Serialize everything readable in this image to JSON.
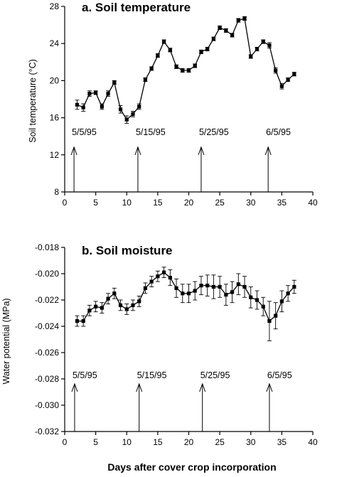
{
  "shared_xlabel": "Days after cover crop incorporation",
  "chart_data": [
    {
      "type": "line",
      "title": "a. Soil temperature",
      "xlabel": "",
      "ylabel": "Soil temperature (°C)",
      "xlim": [
        0,
        40
      ],
      "ylim": [
        8,
        28
      ],
      "xticks": [
        0,
        5,
        10,
        15,
        20,
        25,
        30,
        35,
        40
      ],
      "yticks": [
        8,
        12,
        16,
        20,
        24,
        28
      ],
      "ytick_labels": [
        "8",
        "12",
        "16",
        "20",
        "24",
        "28"
      ],
      "grid": false,
      "x": [
        2,
        3,
        4,
        5,
        6,
        7,
        8,
        9,
        10,
        11,
        12,
        13,
        14,
        15,
        16,
        17,
        18,
        19,
        20,
        21,
        22,
        23,
        24,
        25,
        26,
        27,
        28,
        29,
        30,
        31,
        32,
        33,
        34,
        35,
        36,
        37
      ],
      "y": [
        17.4,
        17.1,
        18.6,
        18.7,
        17.2,
        18.6,
        19.8,
        16.9,
        15.8,
        16.4,
        17.2,
        20.1,
        21.3,
        22.7,
        24.2,
        23.3,
        21.5,
        21.1,
        21.1,
        21.6,
        23.1,
        23.4,
        24.5,
        25.7,
        25.4,
        24.9,
        26.5,
        26.7,
        22.6,
        23.4,
        24.2,
        23.8,
        21.1,
        19.4,
        20.1,
        20.7
      ],
      "yerr": [
        0.5,
        0.4,
        0.3,
        0.2,
        0.3,
        0.3,
        0.2,
        0.4,
        0.4,
        0.3,
        0.3,
        0.2,
        0.2,
        0.2,
        0.2,
        0.2,
        0.2,
        0.2,
        0.2,
        0.2,
        0.2,
        0.2,
        0.2,
        0.2,
        0.2,
        0.2,
        0.2,
        0.2,
        0.2,
        0.2,
        0.2,
        0.3,
        0.3,
        0.3,
        0.2,
        0.2
      ],
      "annotations": [
        {
          "label": "5/5/95",
          "x": 1.5
        },
        {
          "label": "5/15/95",
          "x": 11.8
        },
        {
          "label": "5/25/95",
          "x": 22.0
        },
        {
          "label": "6/5/95",
          "x": 32.8
        }
      ]
    },
    {
      "type": "line",
      "title": "b. Soil moisture",
      "xlabel": "Days after cover crop incorporation",
      "ylabel": "Water potential (MPa)",
      "xlim": [
        0,
        40
      ],
      "ylim": [
        -0.032,
        -0.018
      ],
      "xticks": [
        0,
        5,
        10,
        15,
        20,
        25,
        30,
        35,
        40
      ],
      "yticks": [
        -0.032,
        -0.03,
        -0.028,
        -0.026,
        -0.024,
        -0.022,
        -0.02,
        -0.018
      ],
      "ytick_labels": [
        "-0.032",
        "-0.030",
        "-0.028",
        "-0.026",
        "-0.024",
        "-0.022",
        "-0.020",
        "-0.018"
      ],
      "grid": false,
      "x": [
        2,
        3,
        4,
        5,
        6,
        7,
        8,
        9,
        10,
        11,
        12,
        13,
        14,
        15,
        16,
        17,
        18,
        19,
        20,
        21,
        22,
        23,
        24,
        25,
        26,
        27,
        28,
        29,
        30,
        31,
        32,
        33,
        34,
        35,
        36,
        37
      ],
      "y": [
        -0.0236,
        -0.0236,
        -0.0228,
        -0.0225,
        -0.0226,
        -0.0219,
        -0.0215,
        -0.0224,
        -0.0227,
        -0.0224,
        -0.0221,
        -0.0211,
        -0.0206,
        -0.0202,
        -0.0199,
        -0.0203,
        -0.0211,
        -0.0215,
        -0.0215,
        -0.0213,
        -0.0209,
        -0.0209,
        -0.021,
        -0.021,
        -0.0216,
        -0.0214,
        -0.0208,
        -0.021,
        -0.0218,
        -0.022,
        -0.0225,
        -0.0236,
        -0.0232,
        -0.0221,
        -0.0215,
        -0.021
      ],
      "yerr": [
        0.0004,
        0.0004,
        0.0004,
        0.0004,
        0.0004,
        0.0004,
        0.0004,
        0.0004,
        0.0004,
        0.0004,
        0.0004,
        0.0004,
        0.0004,
        0.0004,
        0.0004,
        0.0006,
        0.0007,
        0.0007,
        0.0007,
        0.0007,
        0.0007,
        0.0008,
        0.0009,
        0.0008,
        0.0008,
        0.0008,
        0.0008,
        0.0008,
        0.0008,
        0.0007,
        0.0007,
        0.0015,
        0.001,
        0.0008,
        0.0006,
        0.0005
      ],
      "annotations": [
        {
          "label": "5/5/95",
          "x": 1.6
        },
        {
          "label": "5/15/95",
          "x": 12.0
        },
        {
          "label": "5/25/95",
          "x": 22.2
        },
        {
          "label": "6/5/95",
          "x": 33.0
        }
      ]
    }
  ]
}
